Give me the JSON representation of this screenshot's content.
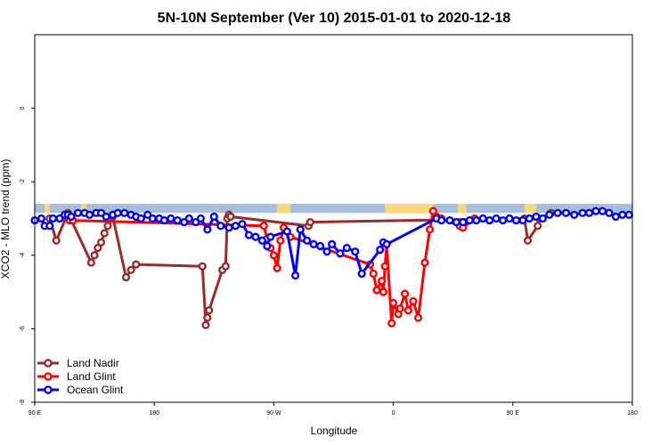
{
  "chart_data": {
    "type": "line",
    "title": "5N-10N September (Ver 10)   2015-01-01 to 2020-12-18",
    "xlabel": "Longitude",
    "ylabel": "XCO2 - MLO trend (ppm)",
    "xlim": [
      -90,
      270
    ],
    "ylim": [
      -8,
      2
    ],
    "xticks": [
      {
        "value": -90,
        "label": "90 E"
      },
      {
        "value": -18,
        "label": "180"
      },
      {
        "value": 54,
        "label": "90 W"
      },
      {
        "value": 126,
        "label": "0"
      },
      {
        "value": 198,
        "label": "90 E"
      },
      {
        "value": 270,
        "label": "180"
      }
    ],
    "yticks": [
      {
        "value": 0,
        "label": "0"
      },
      {
        "value": -2,
        "label": "-2"
      },
      {
        "value": -4,
        "label": "-4"
      },
      {
        "value": -6,
        "label": "-6"
      },
      {
        "value": -8,
        "label": "-8"
      }
    ],
    "grid": false,
    "legend_position": "bottom-left",
    "land_strip": {
      "y_range": [
        -2.85,
        -2.6
      ],
      "ocean_color": "#a7bfdc",
      "land_color": "#fbd97a",
      "land_x_ranges": [
        [
          -84,
          -81
        ],
        [
          -62,
          -59
        ],
        [
          56,
          64
        ],
        [
          121,
          150
        ],
        [
          165,
          170
        ],
        [
          205,
          212
        ]
      ]
    },
    "series": [
      {
        "name": "Land Nadir",
        "color": "#9b2b2b",
        "x": [
          -81,
          -77,
          -70,
          -56,
          -54,
          -52,
          -50,
          -48,
          -46,
          -43,
          -35,
          -32,
          -29,
          11,
          13,
          14,
          15,
          23,
          25,
          26,
          27,
          28,
          75,
          76,
          205,
          207,
          213,
          214,
          221
        ],
        "y": [
          -3.0,
          -3.6,
          -2.85,
          -4.2,
          -4.0,
          -3.8,
          -3.65,
          -3.4,
          -3.2,
          -2.95,
          -4.6,
          -4.4,
          -4.25,
          -4.3,
          -5.9,
          -5.7,
          -5.5,
          -4.4,
          -4.3,
          -3.0,
          -2.9,
          -2.95,
          -3.2,
          -3.1,
          -3.0,
          -3.6,
          -3.2,
          -3.0,
          -2.85
        ]
      },
      {
        "name": "Land Glint",
        "color": "#ff0000",
        "x": [
          -69,
          -67,
          48,
          50,
          52,
          54,
          56,
          58,
          60,
          64,
          112,
          114,
          116,
          119,
          120,
          121,
          122,
          125,
          126,
          129,
          130,
          133,
          135,
          138,
          141,
          145,
          148,
          150,
          152,
          155,
          166,
          168,
          175
        ],
        "y": [
          -3.05,
          -3.05,
          -3.2,
          -3.55,
          -3.8,
          -4.0,
          -4.35,
          -3.6,
          -3.25,
          -3.5,
          -4.25,
          -4.5,
          -4.95,
          -4.7,
          -5.0,
          -4.3,
          -3.7,
          -5.85,
          -5.3,
          -5.6,
          -5.45,
          -5.05,
          -5.5,
          -5.25,
          -5.7,
          -4.2,
          -3.3,
          -2.8,
          -2.95,
          -3.0,
          -3.2,
          -3.25,
          -3.0
        ]
      },
      {
        "name": "Ocean Glint",
        "color": "#0000ff",
        "x": [
          -90,
          -86,
          -84,
          -81,
          -79,
          -75,
          -72,
          -70,
          -68,
          -64,
          -60,
          -57,
          -53,
          -50,
          -47,
          -43,
          -40,
          -36,
          -32,
          -29,
          -26,
          -22,
          -19,
          -15,
          -12,
          -8,
          -4,
          0,
          3,
          7,
          10,
          14,
          18,
          22,
          27,
          31,
          35,
          39,
          43,
          47,
          50,
          52,
          62,
          67,
          70,
          74,
          78,
          82,
          86,
          89,
          94,
          98,
          103,
          107,
          118,
          120,
          122,
          152,
          155,
          160,
          164,
          168,
          172,
          176,
          180,
          184,
          188,
          192,
          196,
          200,
          204,
          208,
          212,
          216,
          220,
          225,
          230,
          235,
          240,
          244,
          248,
          252,
          256,
          260,
          264,
          268
        ],
        "y": [
          -3.05,
          -3.0,
          -3.2,
          -3.2,
          -3.0,
          -3.0,
          -2.9,
          -2.9,
          -2.95,
          -2.85,
          -2.85,
          -2.9,
          -2.85,
          -2.85,
          -2.95,
          -2.9,
          -2.85,
          -2.85,
          -2.9,
          -2.95,
          -3.0,
          -2.9,
          -3.0,
          -3.0,
          -3.05,
          -3.0,
          -3.05,
          -3.1,
          -3.0,
          -3.1,
          -3.0,
          -3.3,
          -2.95,
          -3.2,
          -3.25,
          -3.2,
          -3.15,
          -3.45,
          -3.5,
          -3.6,
          -3.75,
          -3.5,
          -3.35,
          -4.55,
          -3.3,
          -3.6,
          -3.7,
          -3.75,
          -3.9,
          -3.7,
          -3.95,
          -3.8,
          -3.9,
          -4.5,
          -3.85,
          -3.65,
          -3.7,
          -3.0,
          -3.05,
          -3.05,
          -3.1,
          -3.1,
          -3.05,
          -3.05,
          -3.0,
          -3.05,
          -3.0,
          -3.05,
          -3.0,
          -3.05,
          -3.05,
          -3.0,
          -2.95,
          -3.0,
          -2.9,
          -2.85,
          -2.85,
          -2.9,
          -2.85,
          -2.85,
          -2.8,
          -2.8,
          -2.85,
          -2.95,
          -2.9,
          -2.9
        ]
      }
    ]
  }
}
